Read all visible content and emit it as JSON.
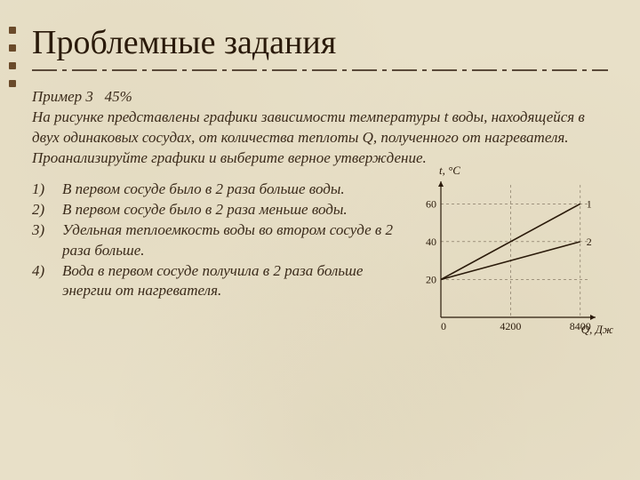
{
  "title": "Проблемные задания",
  "intro": {
    "example_label": "Пример 3",
    "percent": "45%",
    "body": "На рисунке представлены графики зависимости температуры t воды, находящейся в двух одинаковых сосудах, от количества теплоты Q, полученного от нагревателя. Проанализируйте графики и выберите верное утверждение."
  },
  "options": [
    {
      "num": "1)",
      "text": "В первом сосуде было в 2 раза больше воды."
    },
    {
      "num": "2)",
      "text": "В первом сосуде было в 2 раза меньше воды."
    },
    {
      "num": "3)",
      "text": "Удельная теплоемкость воды во втором сосуде в 2 раза больше."
    },
    {
      "num": "4)",
      "text": "Вода в первом сосуде получила в 2 раза больше энергии от нагревателя."
    }
  ],
  "chart": {
    "type": "line",
    "y_label": "t, °C",
    "x_label": "Q, Дж",
    "background_color": "transparent",
    "axis_color": "#2a1a0a",
    "line_color": "#2a1a0a",
    "line_width": 1.6,
    "font_size": 12,
    "xlim": [
      0,
      9000
    ],
    "ylim": [
      0,
      70
    ],
    "x_ticks": [
      {
        "v": 0,
        "label": "0"
      },
      {
        "v": 4200,
        "label": "4200"
      },
      {
        "v": 8400,
        "label": "8400"
      }
    ],
    "y_ticks": [
      {
        "v": 20,
        "label": "20"
      },
      {
        "v": 40,
        "label": "40"
      },
      {
        "v": 60,
        "label": "60"
      }
    ],
    "series": [
      {
        "name": "1",
        "label_pos": "end-right",
        "points": [
          {
            "x": 0,
            "y": 20
          },
          {
            "x": 8400,
            "y": 60
          }
        ]
      },
      {
        "name": "2",
        "label_pos": "end-right",
        "points": [
          {
            "x": 0,
            "y": 20
          },
          {
            "x": 8400,
            "y": 40
          }
        ]
      }
    ]
  }
}
